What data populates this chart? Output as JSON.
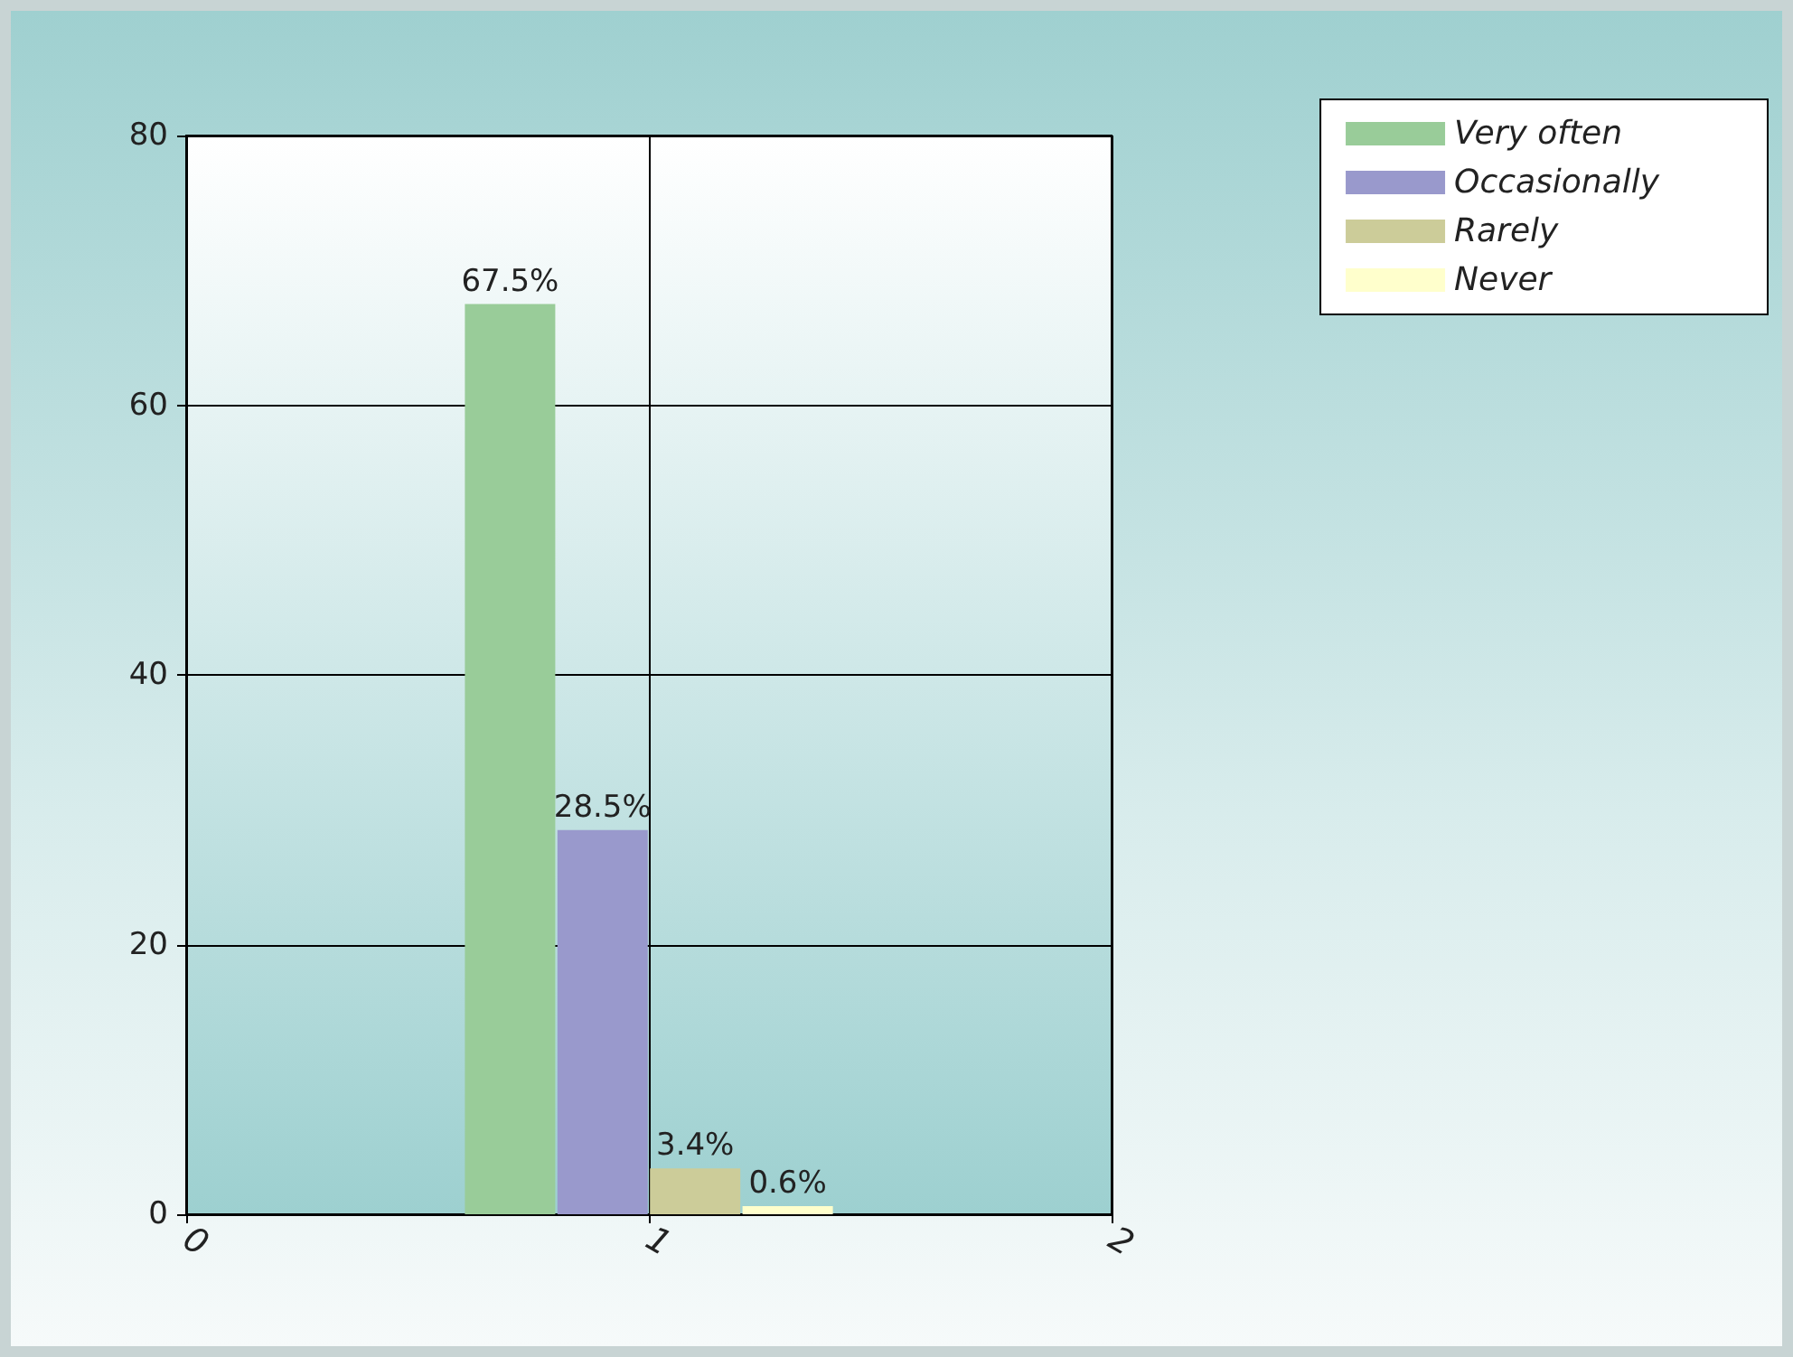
{
  "chart_data": {
    "type": "bar",
    "xlim": [
      0,
      2
    ],
    "xticks": [
      0,
      1,
      2
    ],
    "ylim": [
      0,
      80
    ],
    "yticks": [
      0,
      20,
      40,
      60,
      80
    ],
    "grid": true,
    "legend": "top right",
    "series": [
      {
        "name": "Very often",
        "color": "#99cc99",
        "x": [
          0.7
        ],
        "values": [
          67.5
        ],
        "value_labels": [
          "67.5%"
        ]
      },
      {
        "name": "Occasionally",
        "color": "#9999cc",
        "x": [
          0.9
        ],
        "values": [
          28.5
        ],
        "value_labels": [
          "28.5%"
        ]
      },
      {
        "name": "Rarely",
        "color": "#cccc99",
        "x": [
          1.1
        ],
        "values": [
          3.4
        ],
        "value_labels": [
          "3.4%"
        ]
      },
      {
        "name": "Never",
        "color": "#ffffcc",
        "x": [
          1.3
        ],
        "values": [
          0.6
        ],
        "value_labels": [
          "0.6%"
        ]
      }
    ]
  }
}
